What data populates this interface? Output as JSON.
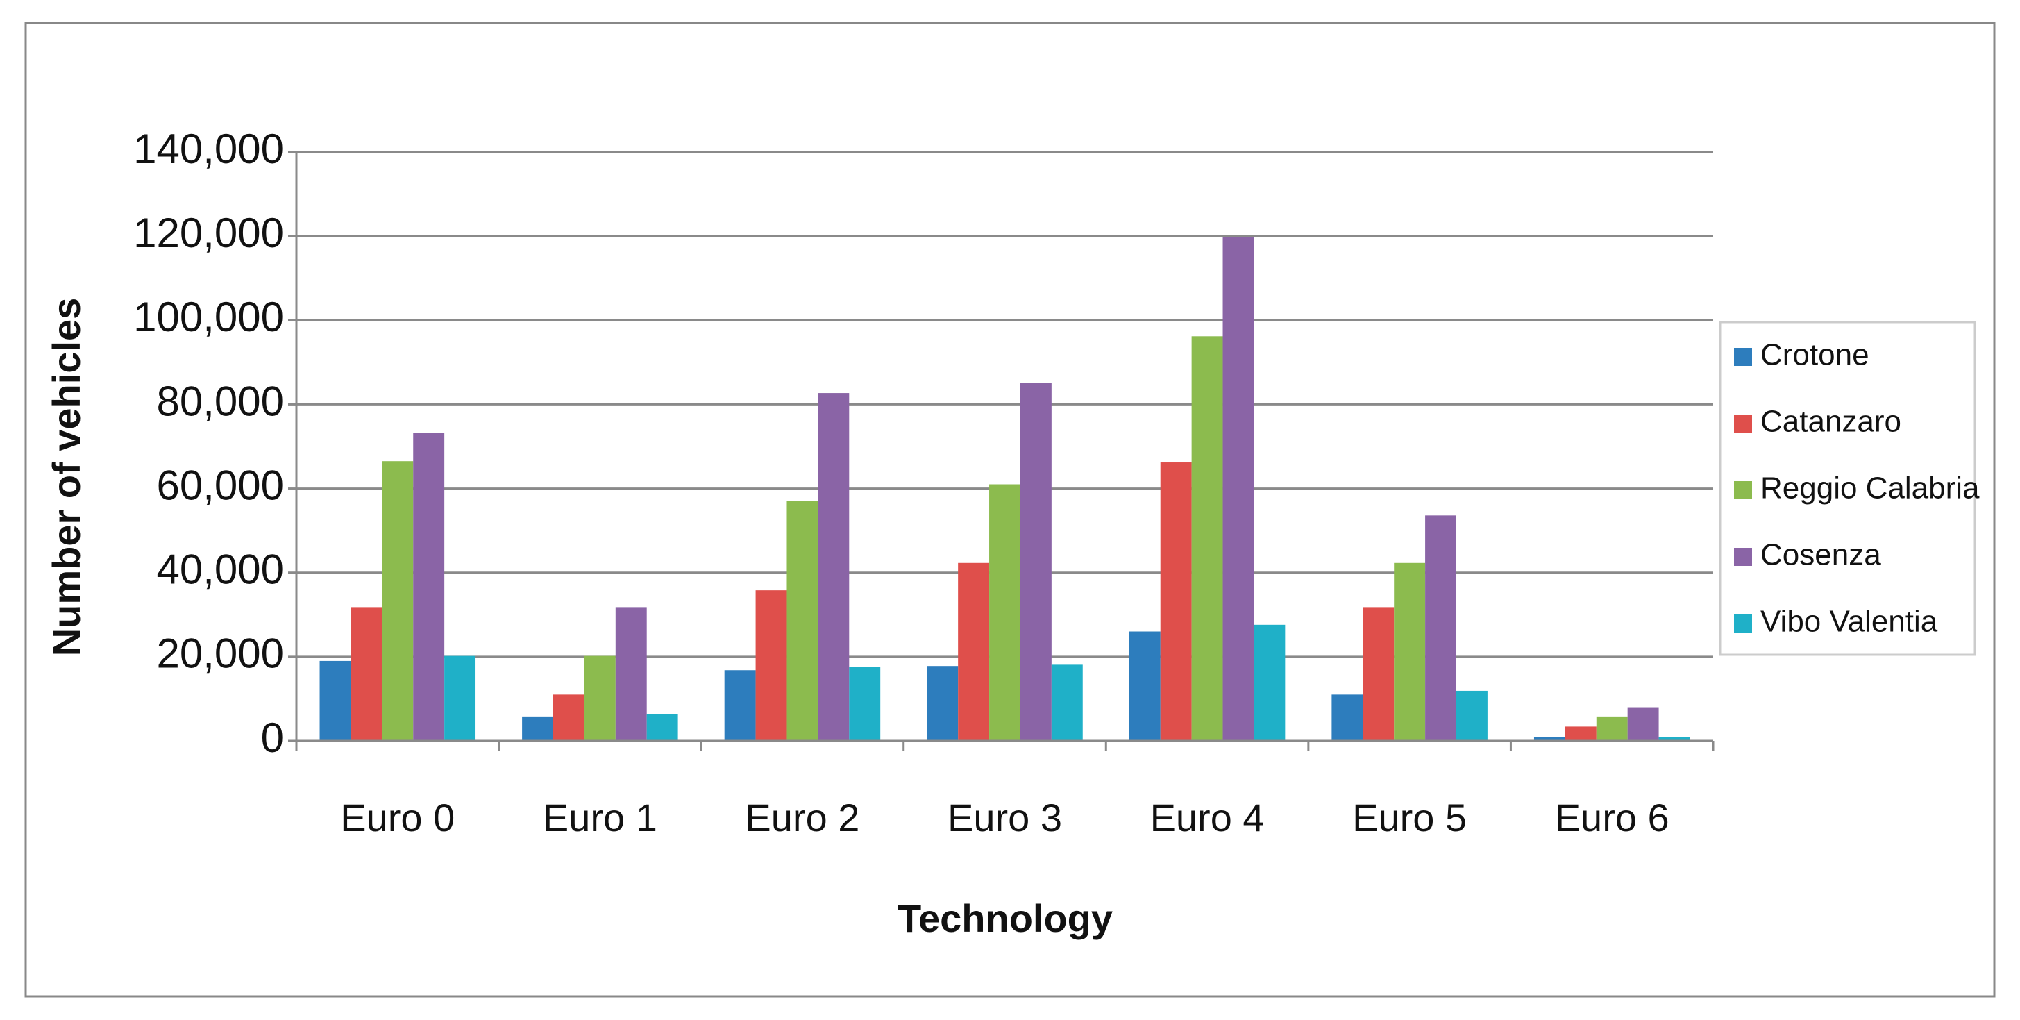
{
  "chart_data": {
    "type": "bar",
    "x_label": "Technology",
    "y_label": "Number of vehicles",
    "categories": [
      "Euro 0",
      "Euro 1",
      "Euro 2",
      "Euro 3",
      "Euro 4",
      "Euro 5",
      "Euro 6"
    ],
    "series": [
      {
        "name": "Crotone",
        "color": "#2d7dbd",
        "values": [
          19000,
          5800,
          16800,
          17800,
          26000,
          11000,
          900
        ]
      },
      {
        "name": "Catanzaro",
        "color": "#df4f4b",
        "values": [
          31800,
          11000,
          35800,
          42300,
          66200,
          31800,
          3400
        ]
      },
      {
        "name": "Reggio Calabria",
        "color": "#8cbb4e",
        "values": [
          66500,
          20200,
          57000,
          61000,
          96200,
          42300,
          5800
        ]
      },
      {
        "name": "Cosenza",
        "color": "#8a64a6",
        "values": [
          73200,
          31800,
          82700,
          85100,
          119700,
          53600,
          8000
        ]
      },
      {
        "name": "Vibo Valentia",
        "color": "#1fb0c8",
        "values": [
          20200,
          6400,
          17500,
          18100,
          27600,
          11900,
          900
        ]
      }
    ],
    "ylim": [
      0,
      140000
    ],
    "yticks": [
      0,
      {
        "value": 20000,
        "label": "20,000"
      },
      {
        "value": 40000,
        "label": "40,000"
      },
      {
        "value": 60000,
        "label": "60,000"
      },
      {
        "value": 80000,
        "label": "80,000"
      },
      {
        "value": 100000,
        "label": "100,000"
      },
      {
        "value": 120000,
        "label": "120,000"
      },
      {
        "value": 140000,
        "label": "140,000"
      }
    ],
    "grid": true,
    "legend": "right"
  }
}
